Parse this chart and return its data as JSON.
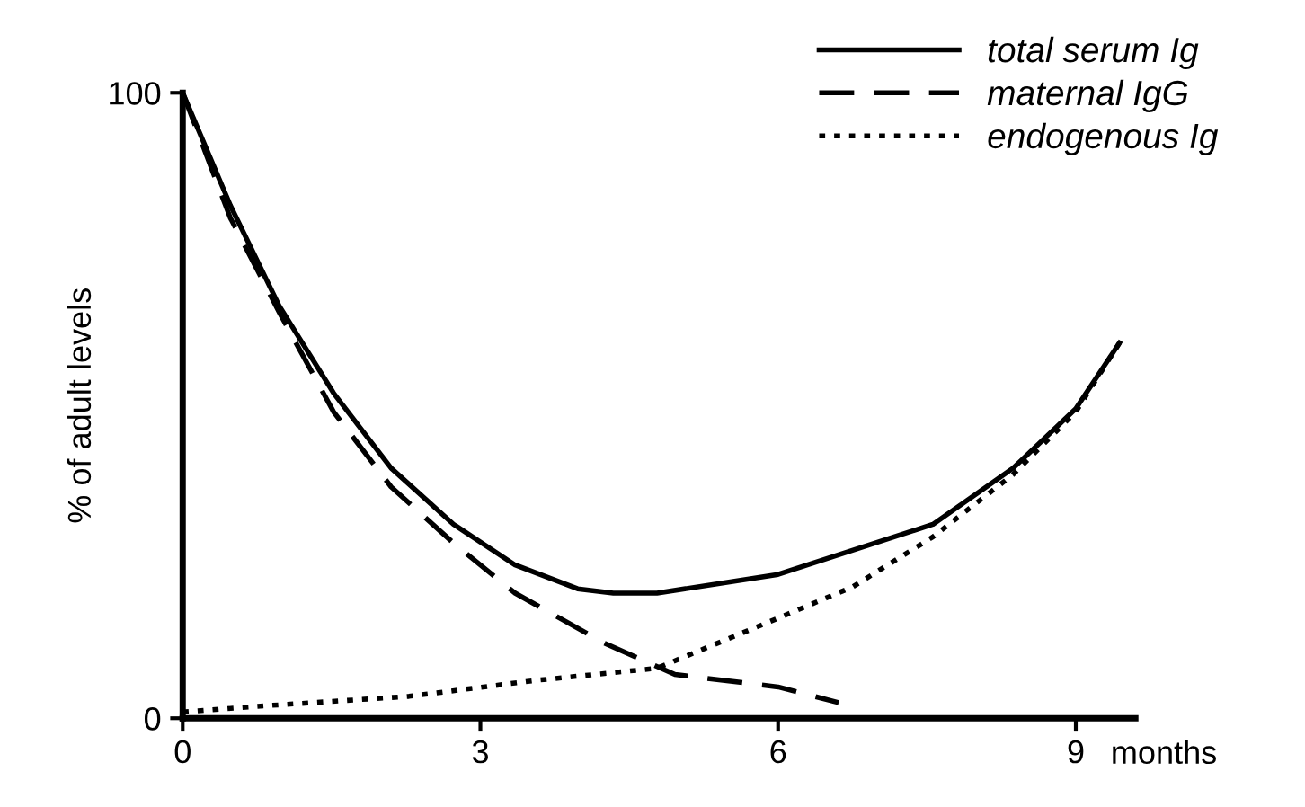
{
  "chart_data": {
    "type": "line",
    "ylabel": "% of adult levels",
    "xlabel": "months",
    "xlim": [
      0,
      9.6
    ],
    "ylim": [
      0,
      100
    ],
    "xticks": [
      0,
      3,
      6,
      9
    ],
    "yticks": [
      0,
      100
    ],
    "grid": false,
    "legend": "top right",
    "marker": "none",
    "series": [
      {
        "name": "total serum Ig",
        "color": "#000000",
        "line_style": "solid",
        "x": [
          0,
          0.48,
          0.97,
          1.52,
          2.1,
          2.73,
          3.35,
          3.98,
          4.34,
          4.78,
          6.0,
          7.56,
          8.37,
          9.0,
          9.44
        ],
        "values": [
          100,
          82,
          66,
          52,
          40,
          31,
          24.5,
          20.7,
          20,
          20,
          23,
          31,
          40,
          49.5,
          60
        ]
      },
      {
        "name": "maternal IgG",
        "color": "#000000",
        "line_style": "dashed",
        "x": [
          0,
          0.48,
          0.97,
          1.52,
          2.1,
          2.73,
          3.35,
          4.25,
          4.96,
          6.0,
          6.61
        ],
        "values": [
          100,
          80,
          65,
          49,
          37,
          28,
          20,
          12,
          7,
          5,
          2.5
        ]
      },
      {
        "name": "endogenous Ig",
        "color": "#000000",
        "line_style": "dotted",
        "x": [
          0,
          0.84,
          2.28,
          3.53,
          4.78,
          6.0,
          6.75,
          7.56,
          8.37,
          9.0,
          9.44
        ],
        "values": [
          1,
          2,
          3.5,
          6,
          8,
          16,
          21,
          29,
          39,
          49,
          60
        ]
      }
    ]
  }
}
